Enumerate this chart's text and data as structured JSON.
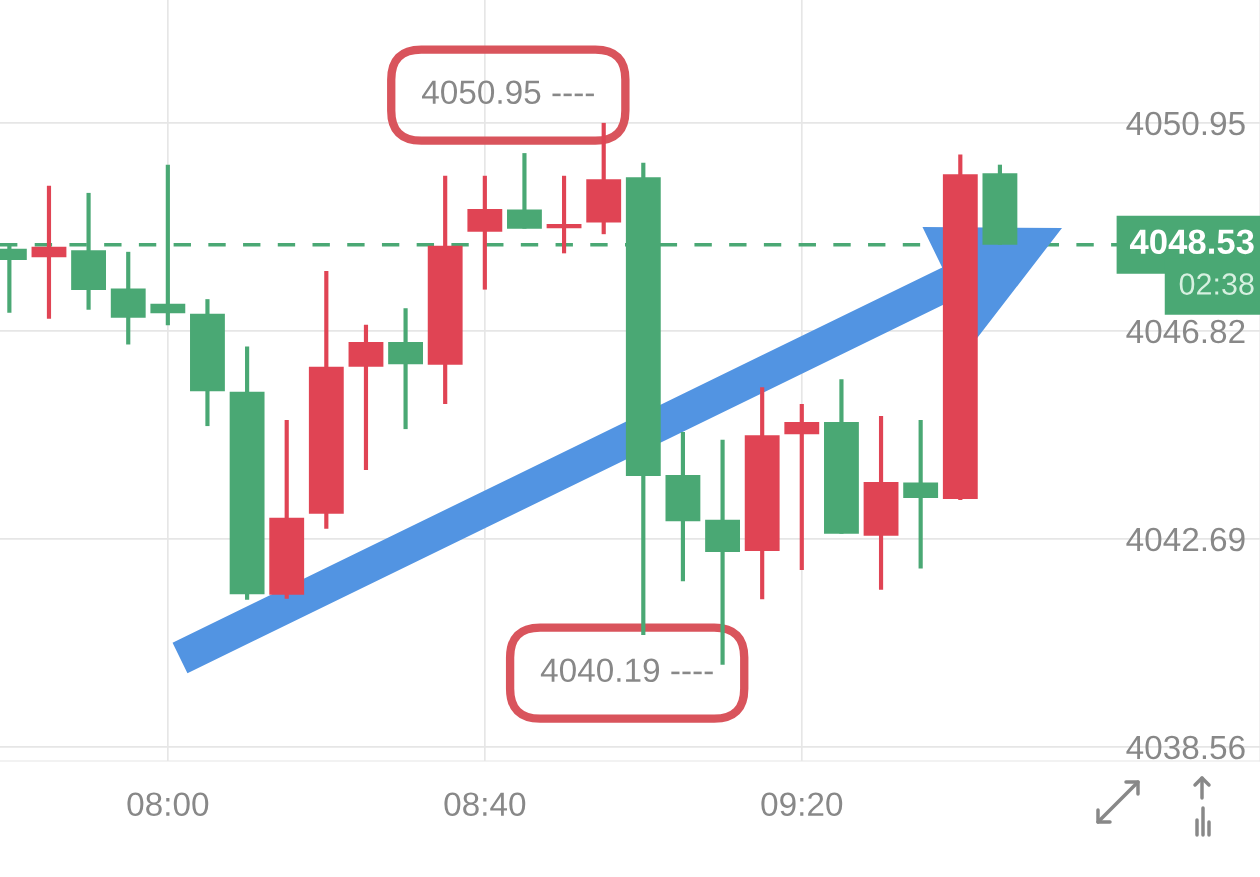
{
  "chart_data": {
    "type": "candlestick",
    "x": [
      7.6667,
      7.75,
      7.8333,
      7.9167,
      8,
      8.0833,
      8.1667,
      8.25,
      8.3333,
      8.4167,
      8.5,
      8.5833,
      8.6667,
      8.75,
      8.8333,
      8.9167,
      9,
      9.0833,
      9.1667,
      9.25,
      9.3333,
      9.4167,
      9.5,
      9.5833,
      9.6667,
      9.75
    ],
    "ohlc": [
      [
        4048.45,
        4048.53,
        4047.18,
        4048.23
      ],
      [
        4048.28,
        4049.7,
        4047.06,
        4048.49
      ],
      [
        4048.42,
        4049.56,
        4047.24,
        4047.63
      ],
      [
        4047.66,
        4048.39,
        4046.55,
        4047.08
      ],
      [
        4047.36,
        4050.12,
        4046.93,
        4047.17
      ],
      [
        4047.16,
        4047.45,
        4044.93,
        4045.62
      ],
      [
        4045.61,
        4046.51,
        4041.48,
        4041.59
      ],
      [
        4041.58,
        4045.05,
        4041.5,
        4043.11
      ],
      [
        4043.19,
        4048.01,
        4042.89,
        4046.11
      ],
      [
        4046.11,
        4046.94,
        4044.06,
        4046.6
      ],
      [
        4046.6,
        4047.27,
        4044.87,
        4046.16
      ],
      [
        4046.15,
        4049.9,
        4045.37,
        4048.51
      ],
      [
        4048.79,
        4049.9,
        4047.64,
        4049.24
      ],
      [
        4049.23,
        4050.35,
        4048.85,
        4048.85
      ],
      [
        4048.86,
        4049.9,
        4048.36,
        4048.94
      ],
      [
        4048.97,
        4050.95,
        4048.74,
        4049.83
      ],
      [
        4049.87,
        4050.16,
        4040.78,
        4043.94
      ],
      [
        4043.96,
        4044.81,
        4041.85,
        4043.04
      ],
      [
        4043.07,
        4044.66,
        4040.19,
        4042.43
      ],
      [
        4042.45,
        4045.7,
        4041.49,
        4044.75
      ],
      [
        4044.77,
        4045.37,
        4042.07,
        4045.01
      ],
      [
        4045.01,
        4045.86,
        4042.79,
        4042.79
      ],
      [
        4042.75,
        4045.13,
        4041.68,
        4043.82
      ],
      [
        4043.81,
        4045.05,
        4042.1,
        4043.5
      ],
      [
        4043.48,
        4050.32,
        4043.46,
        4049.93
      ],
      [
        4049.95,
        4050.12,
        4048.53,
        4048.53
      ]
    ],
    "colors": [
      "#4aa874",
      "#e04454",
      "#4aa874",
      "#4aa874",
      "#4aa874",
      "#4aa874",
      "#4aa874",
      "#e04454",
      "#e04454",
      "#e04454",
      "#4aa874",
      "#e04454",
      "#e04454",
      "#4aa874",
      "#e04454",
      "#e04454",
      "#4aa874",
      "#4aa874",
      "#4aa874",
      "#e04454",
      "#e04454",
      "#4aa874",
      "#e04454",
      "#4aa874",
      "#e04454",
      "#4aa874"
    ],
    "xlim": [
      7.647,
      10.297
    ],
    "xticks": [
      {
        "value": 8,
        "label": "08:00"
      },
      {
        "value": 8.6667,
        "label": "08:40"
      },
      {
        "value": 9.3333,
        "label": "09:20"
      }
    ],
    "ylim": [
      4038.28,
      4053.39
    ],
    "yticks": [
      4038.56,
      4042.69,
      4046.82,
      4050.95
    ],
    "grid": true,
    "ref_lines": [
      {
        "axis": "y",
        "value": 4048.53,
        "label": "4048.53",
        "color": "#4aa874",
        "line_style": "dashed"
      }
    ],
    "annotations": [
      {
        "text": "4050.95 ----",
        "x": 8.9167,
        "y": 4050.95
      },
      {
        "text": "4040.19 ----",
        "x": 9.1667,
        "y": 4040.19
      },
      "02:38"
    ]
  }
}
